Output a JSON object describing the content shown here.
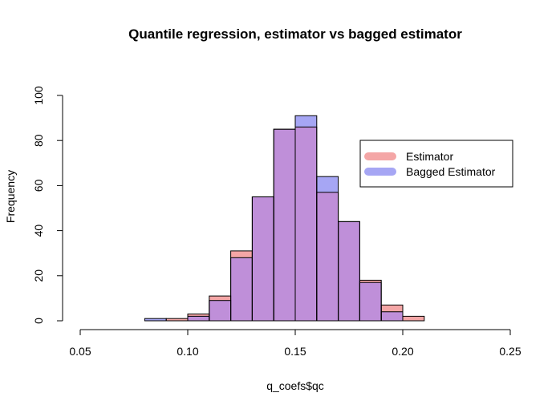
{
  "chart_data": {
    "type": "bar",
    "title": "Quantile regression, estimator vs bagged estimator",
    "xlabel": "q_coefs$qc",
    "ylabel": "Frequency",
    "xlim": [
      0.05,
      0.25
    ],
    "ylim": [
      0,
      100
    ],
    "xticks": [
      "0.05",
      "0.10",
      "0.15",
      "0.20",
      "0.25"
    ],
    "yticks": [
      "0",
      "20",
      "40",
      "60",
      "80",
      "100"
    ],
    "bin_edges": [
      0.08,
      0.09,
      0.1,
      0.11,
      0.12,
      0.13,
      0.14,
      0.15,
      0.16,
      0.17,
      0.18,
      0.19,
      0.2,
      0.21
    ],
    "series": [
      {
        "name": "Estimator",
        "color": "#f4a6a6",
        "values": [
          0,
          1,
          3,
          11,
          31,
          55,
          85,
          86,
          57,
          44,
          18,
          7,
          2
        ]
      },
      {
        "name": "Bagged Estimator",
        "color": "#a6a6f4",
        "values": [
          1,
          0,
          2,
          9,
          28,
          55,
          85,
          91,
          64,
          44,
          17,
          4,
          0
        ]
      }
    ],
    "overlap_color": "#bf8fd9",
    "grid": false,
    "legend_position": "top-right"
  }
}
